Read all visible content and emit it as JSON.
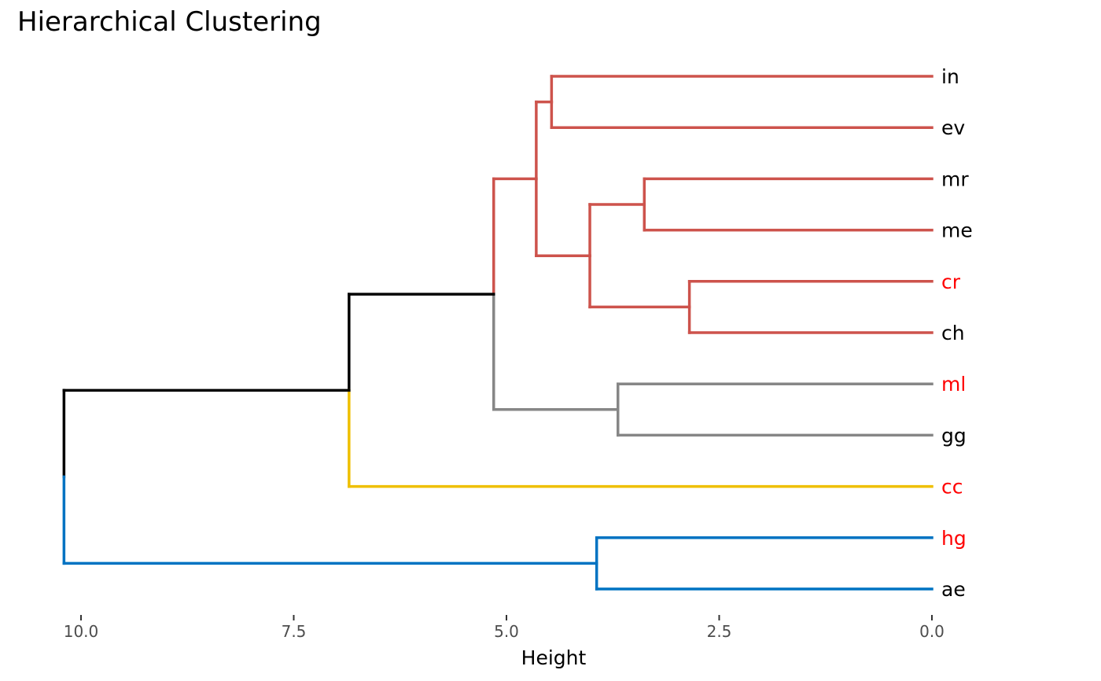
{
  "chart_data": {
    "type": "dendrogram",
    "title": "Hierarchical Clustering",
    "xlabel": "Height",
    "ylabel": "",
    "xlim": [
      10.0,
      0.0
    ],
    "ticks": [
      {
        "value": 10.0,
        "label": "10.0"
      },
      {
        "value": 7.5,
        "label": "7.5"
      },
      {
        "value": 5.0,
        "label": "5.0"
      },
      {
        "value": 2.5,
        "label": "2.5"
      },
      {
        "value": 0.0,
        "label": "0.0"
      }
    ],
    "grid": false,
    "colors": {
      "red": "#cd534c",
      "gray": "#868686",
      "yellow": "#efc000",
      "blue": "#0073c2",
      "black": "#000000",
      "label_highlight": "#ff0000",
      "label_default": "#000000"
    },
    "leaves": [
      {
        "label": "in",
        "highlight": false
      },
      {
        "label": "ev",
        "highlight": false
      },
      {
        "label": "mr",
        "highlight": false
      },
      {
        "label": "me",
        "highlight": false
      },
      {
        "label": "cr",
        "highlight": true
      },
      {
        "label": "ch",
        "highlight": false
      },
      {
        "label": "ml",
        "highlight": true
      },
      {
        "label": "gg",
        "highlight": false
      },
      {
        "label": "cc",
        "highlight": true
      },
      {
        "label": "hg",
        "highlight": true
      },
      {
        "label": "ae",
        "highlight": false
      }
    ],
    "merges": [
      {
        "id": "m1",
        "height": 4.47,
        "children": [
          "in",
          "ev"
        ],
        "color": "red"
      },
      {
        "id": "m2",
        "height": 3.38,
        "children": [
          "mr",
          "me"
        ],
        "color": "red"
      },
      {
        "id": "m3",
        "height": 2.85,
        "children": [
          "cr",
          "ch"
        ],
        "color": "red"
      },
      {
        "id": "m4",
        "height": 4.02,
        "children": [
          "m2",
          "m3"
        ],
        "color": "red"
      },
      {
        "id": "m5",
        "height": 4.65,
        "children": [
          "m1",
          "m4"
        ],
        "color": "red"
      },
      {
        "id": "m6",
        "height": 3.69,
        "children": [
          "ml",
          "gg"
        ],
        "color": "gray"
      },
      {
        "id": "m7",
        "height": 5.15,
        "children": [
          "m5",
          "m6"
        ],
        "color": "red-gray"
      },
      {
        "id": "m8",
        "height": 6.85,
        "children": [
          "m7",
          "cc"
        ],
        "color": "black-yellow"
      },
      {
        "id": "m9",
        "height": 3.94,
        "children": [
          "hg",
          "ae"
        ],
        "color": "blue"
      },
      {
        "id": "m10",
        "height": 10.2,
        "children": [
          "m8",
          "m9"
        ],
        "color": "black-blue"
      }
    ]
  }
}
